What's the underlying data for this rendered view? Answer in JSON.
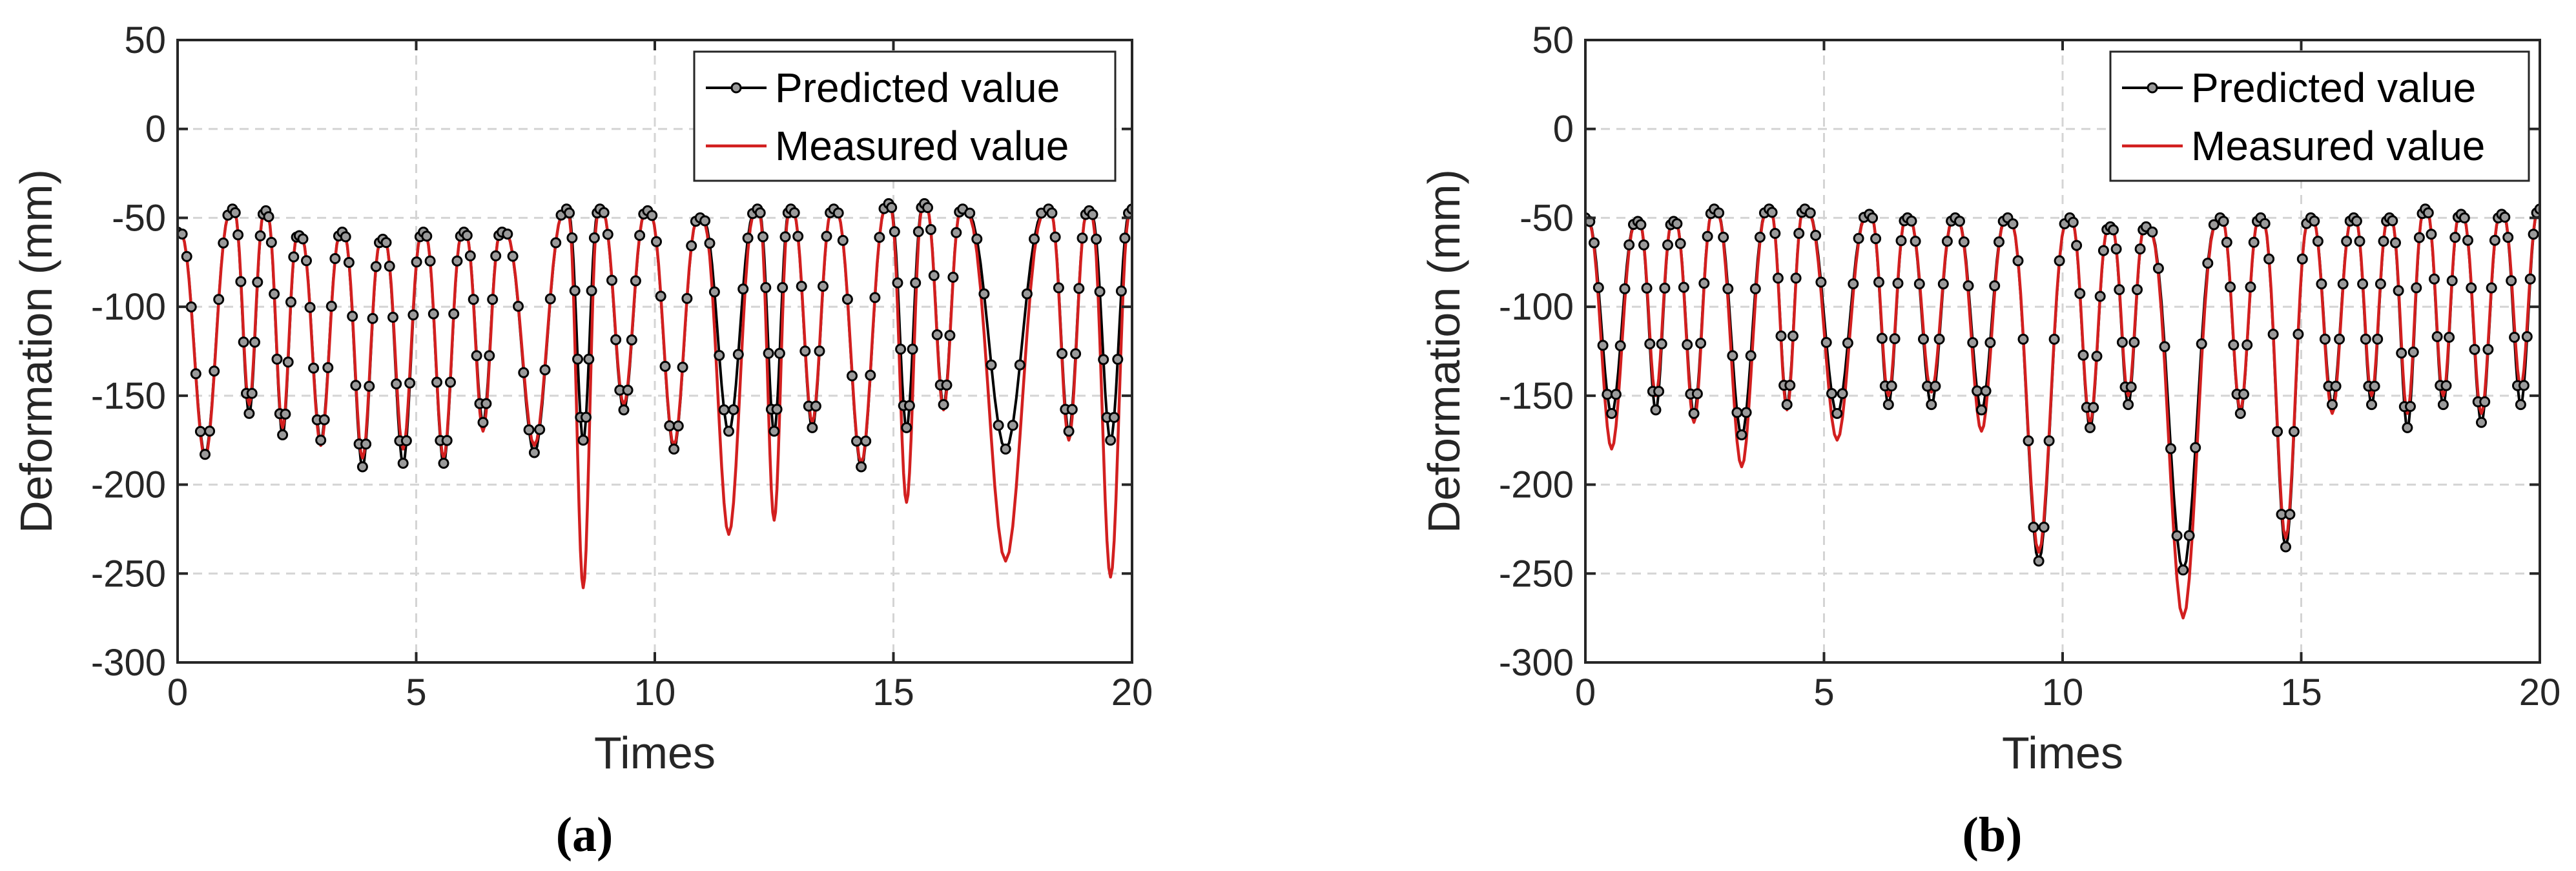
{
  "colors": {
    "predicted": "#000000",
    "measured": "#d21f1f",
    "grid": "#d4d4d4",
    "axes": "#262626",
    "marker_fill": "#9a9a9a"
  },
  "chart_data": [
    {
      "type": "line",
      "panel_label": "(a)",
      "xlabel": "Times",
      "ylabel": "Deformation (mm)",
      "xlim": [
        0,
        20
      ],
      "ylim": [
        -300,
        50
      ],
      "xticks": [
        "0",
        "5",
        "10",
        "15",
        "20"
      ],
      "yticks": [
        "50",
        "0",
        "-50",
        "-100",
        "-150",
        "-200",
        "-250",
        "-300"
      ],
      "grid": true,
      "legend": {
        "position": "top-right",
        "entries": [
          "Predicted value",
          "Measured value"
        ]
      },
      "cycles": [
        {
          "start": 0.0,
          "peak": -58,
          "pred_min": -183,
          "meas_min": -185
        },
        {
          "start": 1.15,
          "peak": -45,
          "pred_min": -160,
          "meas_min": -155
        },
        {
          "start": 1.85,
          "peak": -46,
          "pred_min": -172,
          "meas_min": -168
        },
        {
          "start": 2.55,
          "peak": -60,
          "pred_min": -175,
          "meas_min": -178
        },
        {
          "start": 3.45,
          "peak": -58,
          "pred_min": -190,
          "meas_min": -185
        },
        {
          "start": 4.3,
          "peak": -62,
          "pred_min": -188,
          "meas_min": -180
        },
        {
          "start": 5.15,
          "peak": -58,
          "pred_min": -188,
          "meas_min": -185
        },
        {
          "start": 6.0,
          "peak": -58,
          "pred_min": -165,
          "meas_min": -170
        },
        {
          "start": 6.8,
          "peak": -58,
          "pred_min": -182,
          "meas_min": -178
        },
        {
          "start": 8.15,
          "peak": -45,
          "pred_min": -175,
          "meas_min": -258
        },
        {
          "start": 8.85,
          "peak": -45,
          "pred_min": -158,
          "meas_min": -155
        },
        {
          "start": 9.85,
          "peak": -46,
          "pred_min": -180,
          "meas_min": -178
        },
        {
          "start": 10.95,
          "peak": -50,
          "pred_min": -170,
          "meas_min": -228
        },
        {
          "start": 12.15,
          "peak": -45,
          "pred_min": -170,
          "meas_min": -220
        },
        {
          "start": 12.85,
          "peak": -45,
          "pred_min": -168,
          "meas_min": -165
        },
        {
          "start": 13.75,
          "peak": -45,
          "pred_min": -190,
          "meas_min": -188
        },
        {
          "start": 14.9,
          "peak": -42,
          "pred_min": -168,
          "meas_min": -210
        },
        {
          "start": 15.65,
          "peak": -42,
          "pred_min": -155,
          "meas_min": -158
        },
        {
          "start": 16.45,
          "peak": -45,
          "pred_min": -180,
          "meas_min": -243
        },
        {
          "start": 18.25,
          "peak": -45,
          "pred_min": -170,
          "meas_min": -175
        },
        {
          "start": 19.1,
          "peak": -46,
          "pred_min": -175,
          "meas_min": -252
        }
      ],
      "end": {
        "x": 20.0,
        "y": -45
      }
    },
    {
      "type": "line",
      "panel_label": "(b)",
      "xlabel": "Times",
      "ylabel": "Deformation (mm)",
      "xlim": [
        0,
        20
      ],
      "ylim": [
        -300,
        50
      ],
      "xticks": [
        "0",
        "5",
        "10",
        "15",
        "20"
      ],
      "yticks": [
        "50",
        "0",
        "-50",
        "-100",
        "-150",
        "-200",
        "-250",
        "-300"
      ],
      "grid": true,
      "legend": {
        "position": "top-right",
        "entries": [
          "Predicted value",
          "Measured value"
        ]
      },
      "cycles": [
        {
          "start": 0.0,
          "peak": -50,
          "pred_min": -160,
          "meas_min": -180
        },
        {
          "start": 1.1,
          "peak": -52,
          "pred_min": -158,
          "meas_min": -150
        },
        {
          "start": 1.85,
          "peak": -52,
          "pred_min": -160,
          "meas_min": -165
        },
        {
          "start": 2.7,
          "peak": -45,
          "pred_min": -172,
          "meas_min": -190
        },
        {
          "start": 3.85,
          "peak": -45,
          "pred_min": -155,
          "meas_min": -158
        },
        {
          "start": 4.6,
          "peak": -45,
          "pred_min": -160,
          "meas_min": -175
        },
        {
          "start": 5.95,
          "peak": -48,
          "pred_min": -155,
          "meas_min": -150
        },
        {
          "start": 6.75,
          "peak": -50,
          "pred_min": -155,
          "meas_min": -148
        },
        {
          "start": 7.75,
          "peak": -50,
          "pred_min": -158,
          "meas_min": -170
        },
        {
          "start": 8.85,
          "peak": -50,
          "pred_min": -243,
          "meas_min": -238
        },
        {
          "start": 10.15,
          "peak": -50,
          "pred_min": -168,
          "meas_min": -165
        },
        {
          "start": 11.0,
          "peak": -55,
          "pred_min": -155,
          "meas_min": -150
        },
        {
          "start": 11.75,
          "peak": -55,
          "pred_min": -248,
          "meas_min": -275
        },
        {
          "start": 13.3,
          "peak": -50,
          "pred_min": -160,
          "meas_min": -158
        },
        {
          "start": 14.15,
          "peak": -50,
          "pred_min": -235,
          "meas_min": -230
        },
        {
          "start": 15.2,
          "peak": -50,
          "pred_min": -155,
          "meas_min": -160
        },
        {
          "start": 16.1,
          "peak": -50,
          "pred_min": -155,
          "meas_min": -150
        },
        {
          "start": 16.85,
          "peak": -50,
          "pred_min": -168,
          "meas_min": -160
        },
        {
          "start": 17.6,
          "peak": -45,
          "pred_min": -155,
          "meas_min": -150
        },
        {
          "start": 18.35,
          "peak": -48,
          "pred_min": -165,
          "meas_min": -160
        },
        {
          "start": 19.2,
          "peak": -48,
          "pred_min": -155,
          "meas_min": -145
        }
      ],
      "end": {
        "x": 20.0,
        "y": -45
      }
    }
  ]
}
